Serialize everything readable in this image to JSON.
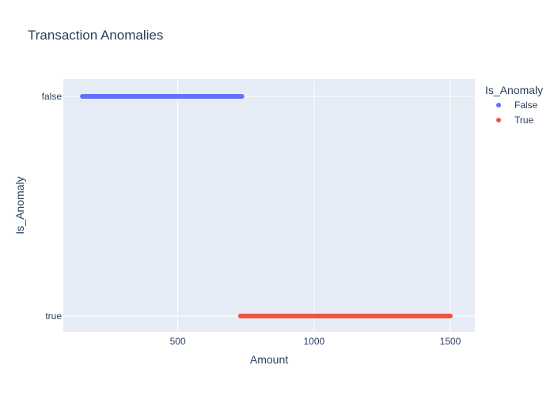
{
  "chart_data": {
    "type": "scatter",
    "title": "Transaction Anomalies",
    "xlabel": "Amount",
    "ylabel": "Is_Anomaly",
    "xlim": [
      80,
      1590
    ],
    "x_ticks": [
      500,
      1000,
      1500
    ],
    "x_tick_labels": [
      "500",
      "1000",
      "1500"
    ],
    "y_categories": [
      "false",
      "true"
    ],
    "y_axis_reversed": true,
    "grid": true,
    "legend": {
      "title": "Is_Anomaly",
      "placement": "right",
      "entries": [
        "False",
        "True"
      ]
    },
    "series": [
      {
        "name": "False",
        "color": "#636efa",
        "y": "false",
        "x_range": [
          150,
          735
        ],
        "point_count": 118
      },
      {
        "name": "True",
        "color": "#ef553b",
        "y": "true",
        "x_range": [
          730,
          1500
        ],
        "point_count": 155
      }
    ],
    "colors": {
      "plot_background": "#e5ecf6",
      "gridline": "#ffffff",
      "text": "#2a3f5f"
    }
  }
}
